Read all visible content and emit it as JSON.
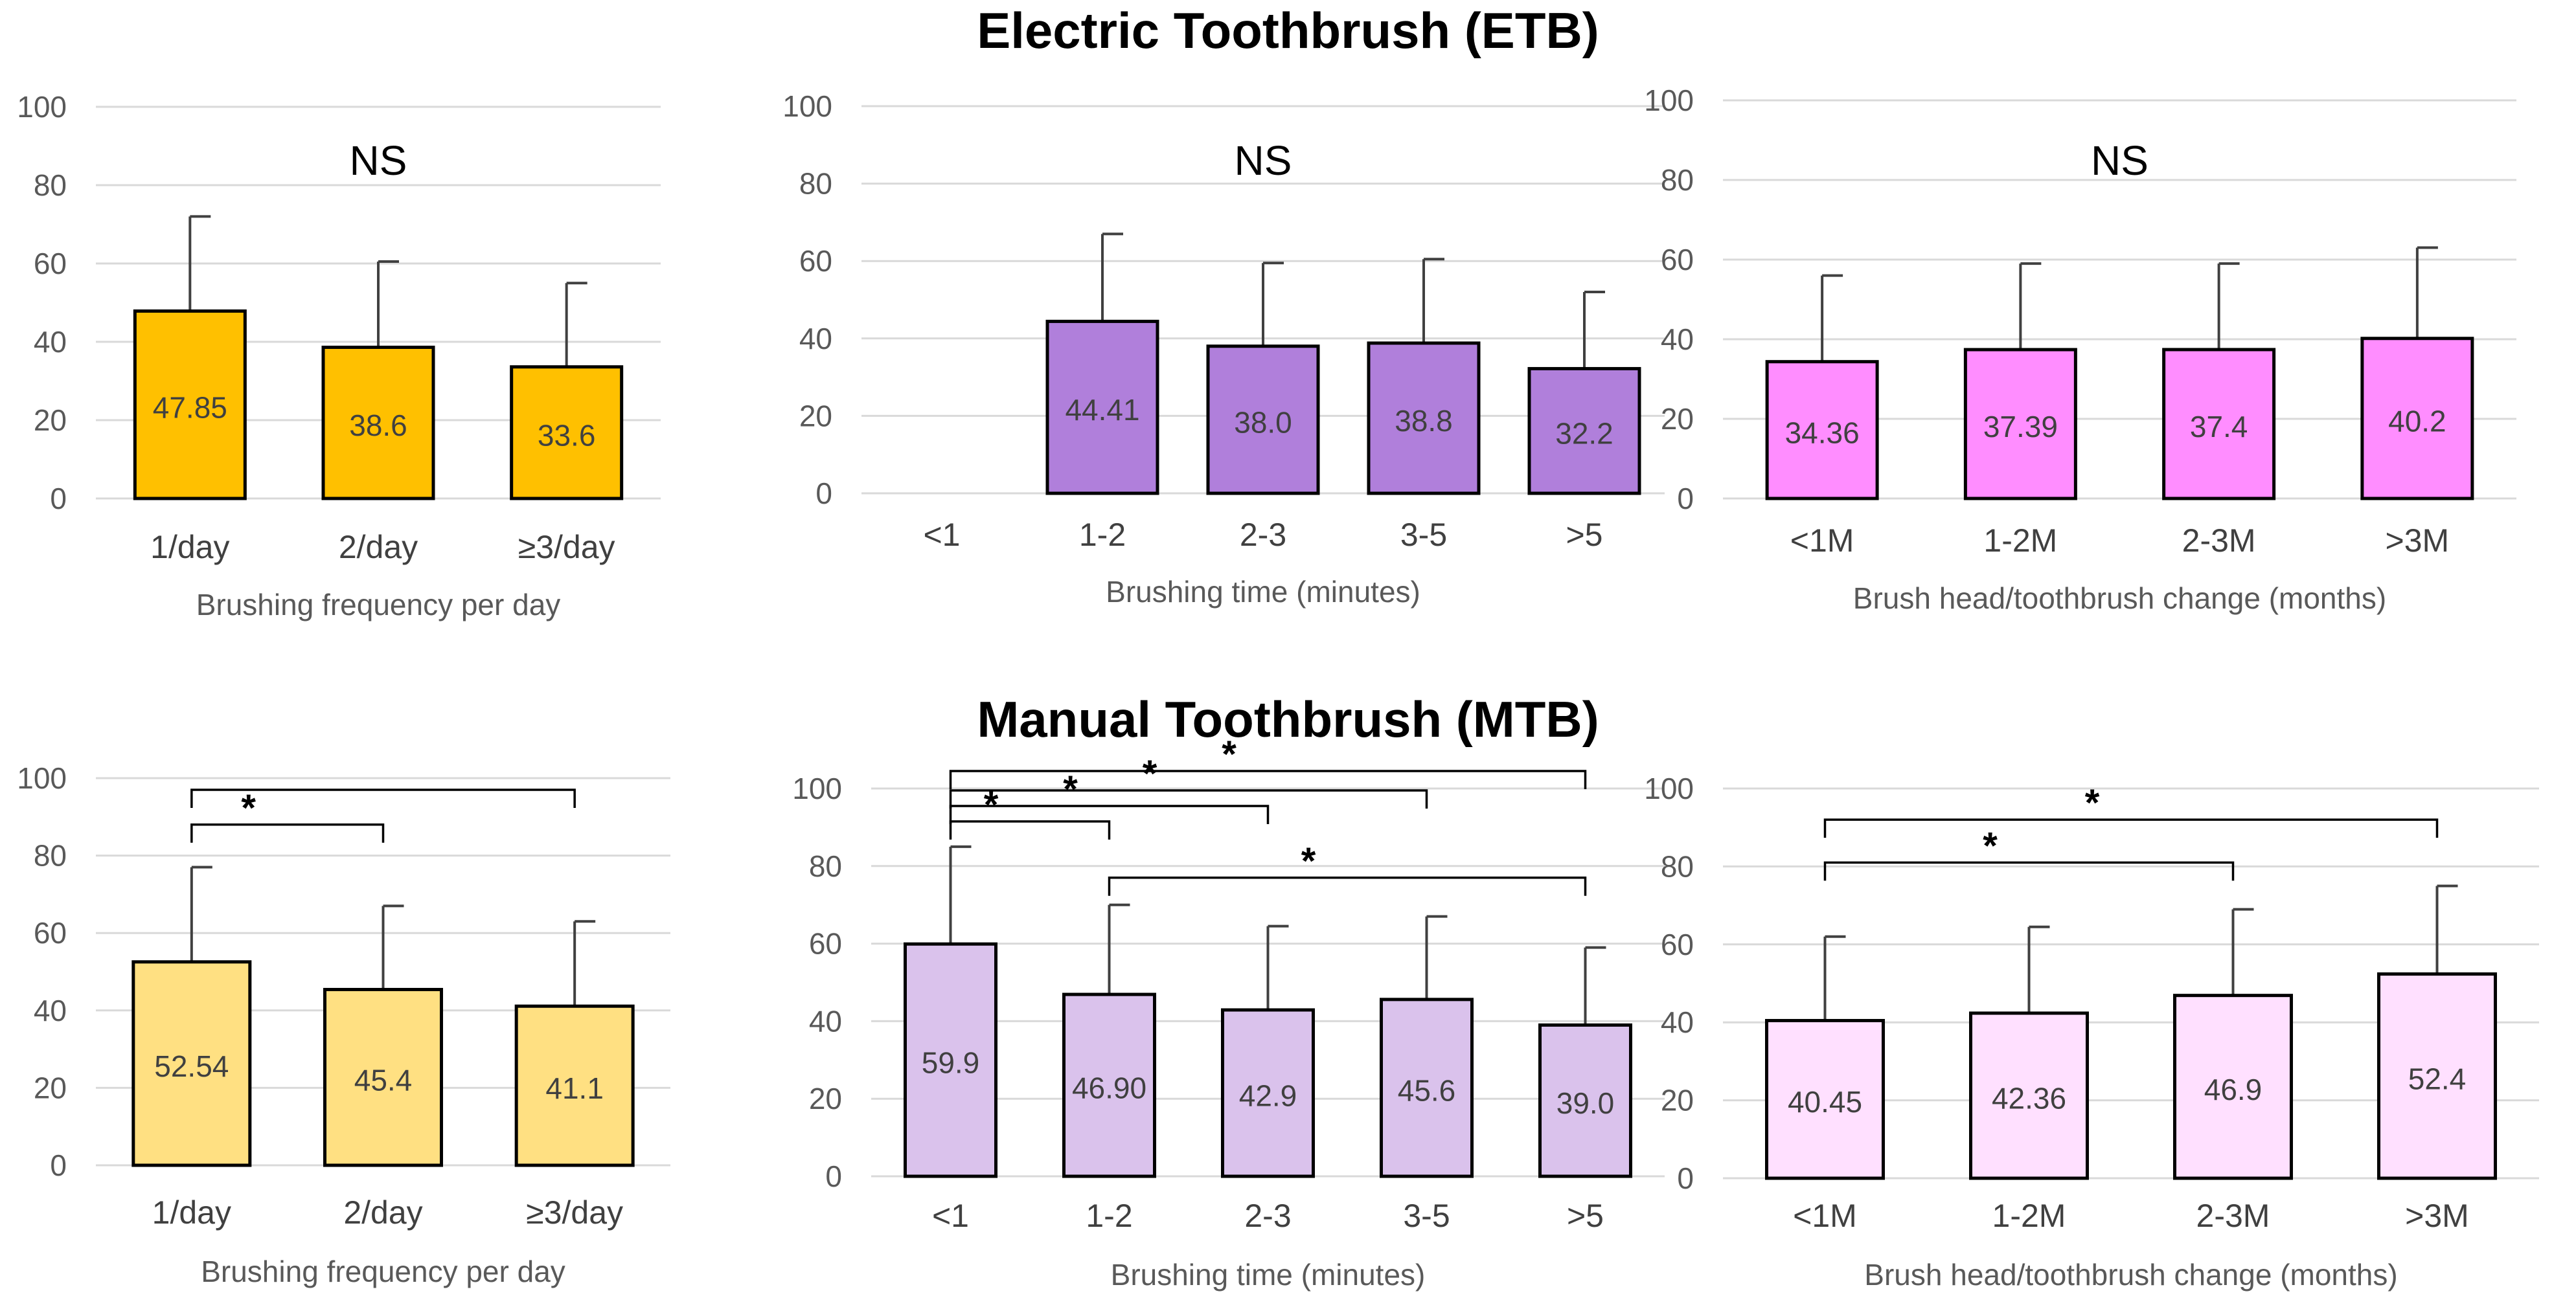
{
  "sections": {
    "etb_title": "Electric Toothbrush (ETB)",
    "mtb_title": "Manual Toothbrush (MTB)"
  },
  "chart_data": [
    {
      "id": "etb-frequency",
      "type": "bar",
      "title": "NS",
      "xlabel": "Brushing frequency per day",
      "ylabel": "",
      "ylim": [
        0,
        100
      ],
      "yticks": [
        0,
        20,
        40,
        60,
        80,
        100
      ],
      "grid": true,
      "categories": [
        "1/day",
        "2/day",
        "≥3/day"
      ],
      "values": [
        47.85,
        38.6,
        33.6
      ],
      "labels": [
        "47.85",
        "38.6",
        "33.6"
      ],
      "error_upper": [
        72,
        60.5,
        55
      ],
      "color": "#FFC000",
      "significance": []
    },
    {
      "id": "etb-time",
      "type": "bar",
      "title": "NS",
      "xlabel": "Brushing time (minutes)",
      "ylabel": "",
      "ylim": [
        0,
        100
      ],
      "yticks": [
        0,
        20,
        40,
        60,
        80,
        100
      ],
      "grid": true,
      "categories": [
        "<1",
        "1-2",
        "2-3",
        "3-5",
        ">5"
      ],
      "values": [
        null,
        44.41,
        38.0,
        38.8,
        32.2
      ],
      "labels": [
        "",
        "44.41",
        "38.0",
        "38.8",
        "32.2"
      ],
      "error_upper": [
        null,
        67,
        59.5,
        60.5,
        52
      ],
      "color": "#B07FDB",
      "significance": []
    },
    {
      "id": "etb-change",
      "type": "bar",
      "title": "NS",
      "xlabel": "Brush head/toothbrush change (months)",
      "ylabel": "",
      "ylim": [
        0,
        100
      ],
      "yticks": [
        0,
        20,
        40,
        60,
        80,
        100
      ],
      "grid": true,
      "categories": [
        "<1M",
        "1-2M",
        "2-3M",
        ">3M"
      ],
      "values": [
        34.36,
        37.39,
        37.4,
        40.2
      ],
      "labels": [
        "34.36",
        "37.39",
        "37.4",
        "40.2"
      ],
      "error_upper": [
        56,
        59,
        59,
        63
      ],
      "color": "#FF8DFF",
      "significance": []
    },
    {
      "id": "mtb-frequency",
      "type": "bar",
      "title": "",
      "xlabel": "Brushing frequency per day",
      "ylabel": "",
      "ylim": [
        0,
        100
      ],
      "yticks": [
        0,
        20,
        40,
        60,
        80,
        100
      ],
      "grid": true,
      "categories": [
        "1/day",
        "2/day",
        "≥3/day"
      ],
      "values": [
        52.54,
        45.4,
        41.1
      ],
      "labels": [
        "52.54",
        "45.4",
        "41.1"
      ],
      "error_upper": [
        77,
        67,
        63
      ],
      "color": "#FFE082",
      "significance": [
        {
          "from": 0,
          "to": 1,
          "level": 88,
          "label": "*"
        },
        {
          "from": 0,
          "to": 2,
          "level": 97,
          "label": ""
        }
      ]
    },
    {
      "id": "mtb-time",
      "type": "bar",
      "title": "",
      "xlabel": "Brushing time (minutes)",
      "ylabel": "",
      "ylim": [
        0,
        100
      ],
      "yticks": [
        0,
        20,
        40,
        60,
        80,
        100
      ],
      "grid": true,
      "categories": [
        "<1",
        "1-2",
        "2-3",
        "3-5",
        ">5"
      ],
      "values": [
        59.9,
        46.9,
        42.9,
        45.6,
        39.0
      ],
      "labels": [
        "59.9",
        "46.90",
        "42.9",
        "45.6",
        "39.0"
      ],
      "error_upper": [
        85,
        70,
        64.5,
        67,
        59
      ],
      "color": "#DAC2EC",
      "significance": [
        {
          "from": 0,
          "to": 1,
          "level": 91.5,
          "label": "*"
        },
        {
          "from": 0,
          "to": 2,
          "level": 95.5,
          "label": "*"
        },
        {
          "from": 0,
          "to": 3,
          "level": 99.5,
          "label": "*"
        },
        {
          "from": 0,
          "to": 4,
          "level": 104.5,
          "label": "*"
        },
        {
          "from": 1,
          "to": 4,
          "level": 77,
          "label": "*"
        }
      ]
    },
    {
      "id": "mtb-change",
      "type": "bar",
      "title": "",
      "xlabel": "Brush head/toothbrush change (months)",
      "ylabel": "",
      "ylim": [
        0,
        100
      ],
      "yticks": [
        0,
        20,
        40,
        60,
        80,
        100
      ],
      "grid": true,
      "categories": [
        "<1M",
        "1-2M",
        "2-3M",
        ">3M"
      ],
      "values": [
        40.45,
        42.36,
        46.9,
        52.4
      ],
      "labels": [
        "40.45",
        "42.36",
        "46.9",
        "52.4"
      ],
      "error_upper": [
        62,
        64.5,
        69,
        75
      ],
      "color": "#FFE0FF",
      "significance": [
        {
          "from": 0,
          "to": 2,
          "level": 81,
          "label": "*"
        },
        {
          "from": 0,
          "to": 3,
          "level": 92,
          "label": "*"
        }
      ]
    }
  ]
}
